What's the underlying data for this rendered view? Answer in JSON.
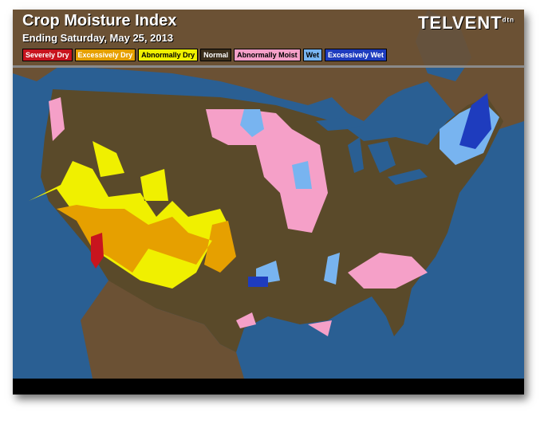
{
  "header": {
    "title": "Crop Moisture Index",
    "subtitle": "Ending Saturday, May 25, 2013",
    "logo": "TELVENT",
    "logo_sub": "dtn"
  },
  "legend": [
    {
      "label": "Severely Dry",
      "color": "#c8141e",
      "text": "#ffffff"
    },
    {
      "label": "Excessively Dry",
      "color": "#e6a000",
      "text": "#ffffff"
    },
    {
      "label": "Abnormally Dry",
      "color": "#f0f000",
      "text": "#000000"
    },
    {
      "label": "Normal",
      "color": "#5a4a2a",
      "text": "#ffffff"
    },
    {
      "label": "Abnormally Moist",
      "color": "#f5a0c8",
      "text": "#000000"
    },
    {
      "label": "Wet",
      "color": "#78b4f0",
      "text": "#000000"
    },
    {
      "label": "Excessively Wet",
      "color": "#1e3cbe",
      "text": "#ffffff"
    }
  ],
  "colors": {
    "water": "#2a5f93",
    "land": "#6b5134",
    "normal_counties": "#5a4a2a"
  }
}
